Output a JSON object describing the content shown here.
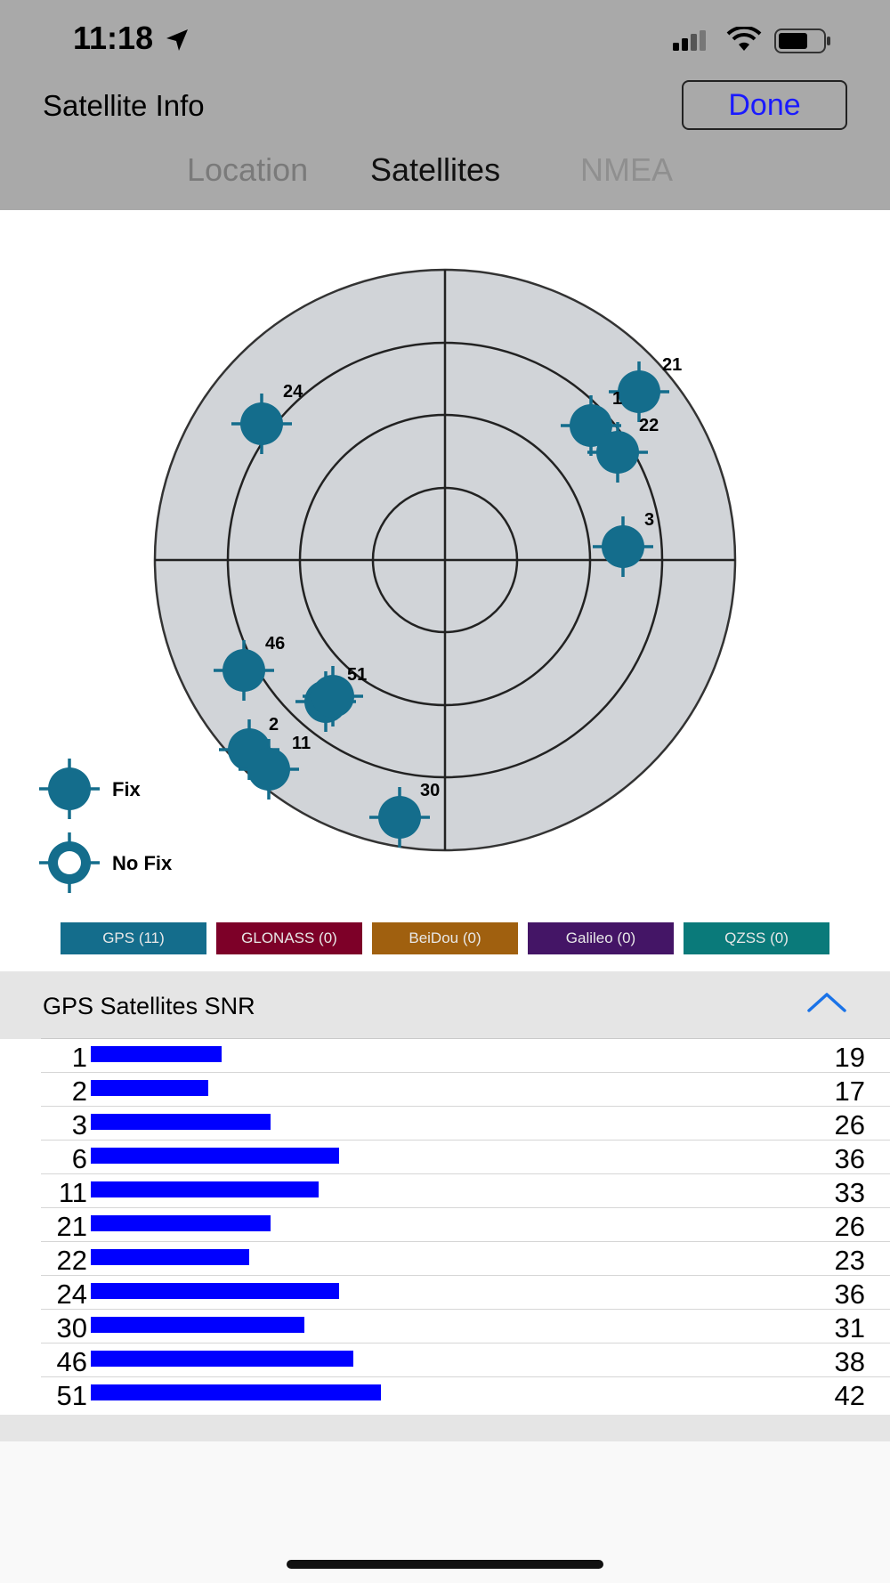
{
  "status": {
    "time": "11:18"
  },
  "header": {
    "title": "Satellite Info",
    "done_label": "Done"
  },
  "tabs": [
    {
      "label": "Location",
      "active": false
    },
    {
      "label": "Satellites",
      "active": true
    },
    {
      "label": "NMEA",
      "active": false
    }
  ],
  "legend": {
    "fix_label": "Fix",
    "no_fix_label": "No Fix"
  },
  "sky_satellites": [
    {
      "label": "24"
    },
    {
      "label": "21"
    },
    {
      "label": "1"
    },
    {
      "label": "22"
    },
    {
      "label": "3"
    },
    {
      "label": "46"
    },
    {
      "label": "51"
    },
    {
      "label": "2"
    },
    {
      "label": "11"
    },
    {
      "label": "30"
    }
  ],
  "constellations": [
    {
      "label": "GPS (11)",
      "color": "#146d8c"
    },
    {
      "label": "GLONASS (0)",
      "color": "#7d0028"
    },
    {
      "label": "BeiDou (0)",
      "color": "#a0600f"
    },
    {
      "label": "Galileo (0)",
      "color": "#441566"
    },
    {
      "label": "QZSS (0)",
      "color": "#0a7a7a"
    }
  ],
  "snr": {
    "title": "GPS Satellites SNR",
    "rows": [
      {
        "prn": "1",
        "snr": "19"
      },
      {
        "prn": "2",
        "snr": "17"
      },
      {
        "prn": "3",
        "snr": "26"
      },
      {
        "prn": "6",
        "snr": "36"
      },
      {
        "prn": "11",
        "snr": "33"
      },
      {
        "prn": "21",
        "snr": "26"
      },
      {
        "prn": "22",
        "snr": "23"
      },
      {
        "prn": "24",
        "snr": "36"
      },
      {
        "prn": "30",
        "snr": "31"
      },
      {
        "prn": "46",
        "snr": "38"
      },
      {
        "prn": "51",
        "snr": "42"
      }
    ]
  },
  "colors": {
    "header_bg": "#a9a9a9",
    "satellite": "#146d8c",
    "snr_bar": "#0000ff",
    "done_text": "#1a1aff"
  }
}
